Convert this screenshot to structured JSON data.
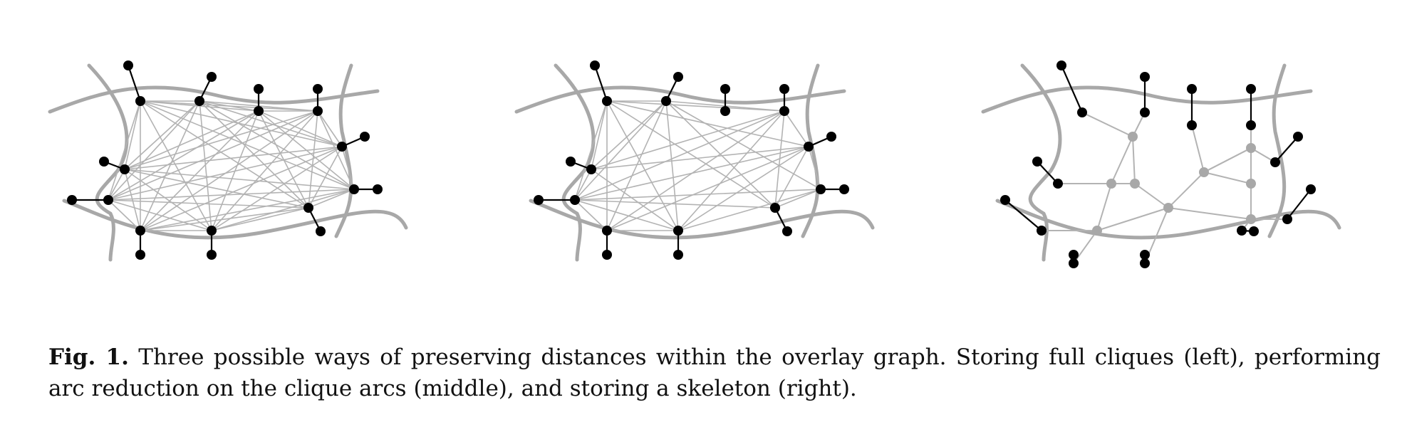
{
  "colors": {
    "cell_boundary": "#a8a8a8",
    "clique_arc": "#b3b3b3",
    "boundary_node": "#000000",
    "skeleton_node": "#a8a8a8",
    "cut_arc": "#000000"
  },
  "caption": {
    "label": "Fig. 1.",
    "text": "Three possible ways of preserving distances within the overlay graph. Storing full cliques (left), performing arc reduction on the clique arcs (middle), and storing a skeleton (right)."
  }
}
